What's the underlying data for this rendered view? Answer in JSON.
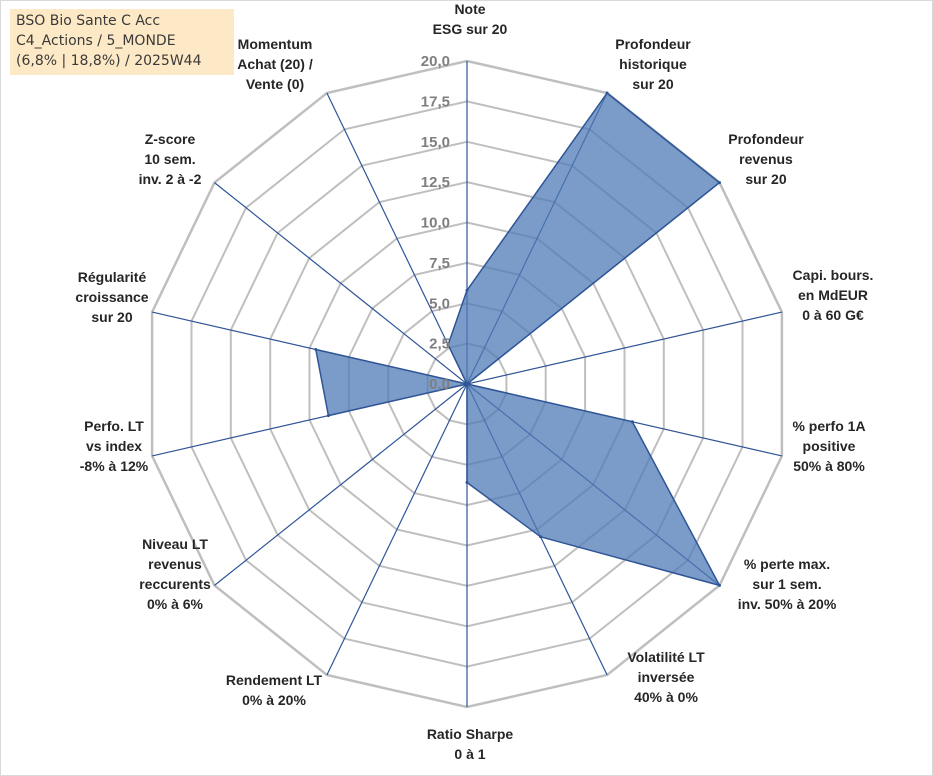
{
  "info": {
    "line1": "BSO Bio Sante C Acc",
    "line2": "C4_Actions / 5_MONDE",
    "line3": "(6,8% | 18,8%) / 2025W44"
  },
  "chart_data": {
    "type": "radar",
    "title": "",
    "axes": [
      [
        "Note",
        "ESG sur 20"
      ],
      [
        "Profondeur",
        "historique",
        "sur 20"
      ],
      [
        "Profondeur",
        "revenus",
        "sur 20"
      ],
      [
        "Capi. bours.",
        "en MdEUR",
        "0 à 60 G€"
      ],
      [
        "% perfo 1A",
        "positive",
        "50% à 80%"
      ],
      [
        "% perte max.",
        "sur 1 sem.",
        "inv. 50% à 20%"
      ],
      [
        "Volatilité LT",
        "inversée",
        "40% à 0%"
      ],
      [
        "Ratio Sharpe",
        "0 à 1"
      ],
      [
        "Rendement LT",
        "0% à 20%"
      ],
      [
        "Niveau LT",
        "revenus",
        "reccurents",
        "0% à 6%"
      ],
      [
        "Perfo. LT",
        "vs index",
        "-8% à 12%"
      ],
      [
        "Régularité",
        "croissance",
        "sur 20"
      ],
      [
        "Z-score",
        "10 sem.",
        "inv. 2 à -2"
      ],
      [
        "Momentum",
        "Achat (20) /",
        "Vente (0)"
      ]
    ],
    "series": [
      {
        "name": "BSO Bio Sante C Acc",
        "values": [
          5.8,
          20,
          20,
          0,
          10.5,
          20,
          10.5,
          6.1,
          0,
          0,
          8.8,
          9.6,
          0,
          2.7
        ]
      }
    ],
    "rmin": 0,
    "rmax": 20,
    "ticks": [
      "0,0",
      "2,5",
      "5,0",
      "7,5",
      "10,0",
      "12,5",
      "15,0",
      "17,5",
      "20,0"
    ],
    "colors": {
      "fill": "#4f7bb5",
      "stroke": "#2f5597",
      "spoke": "#2f5597",
      "grid": "#bfbfbf"
    }
  }
}
